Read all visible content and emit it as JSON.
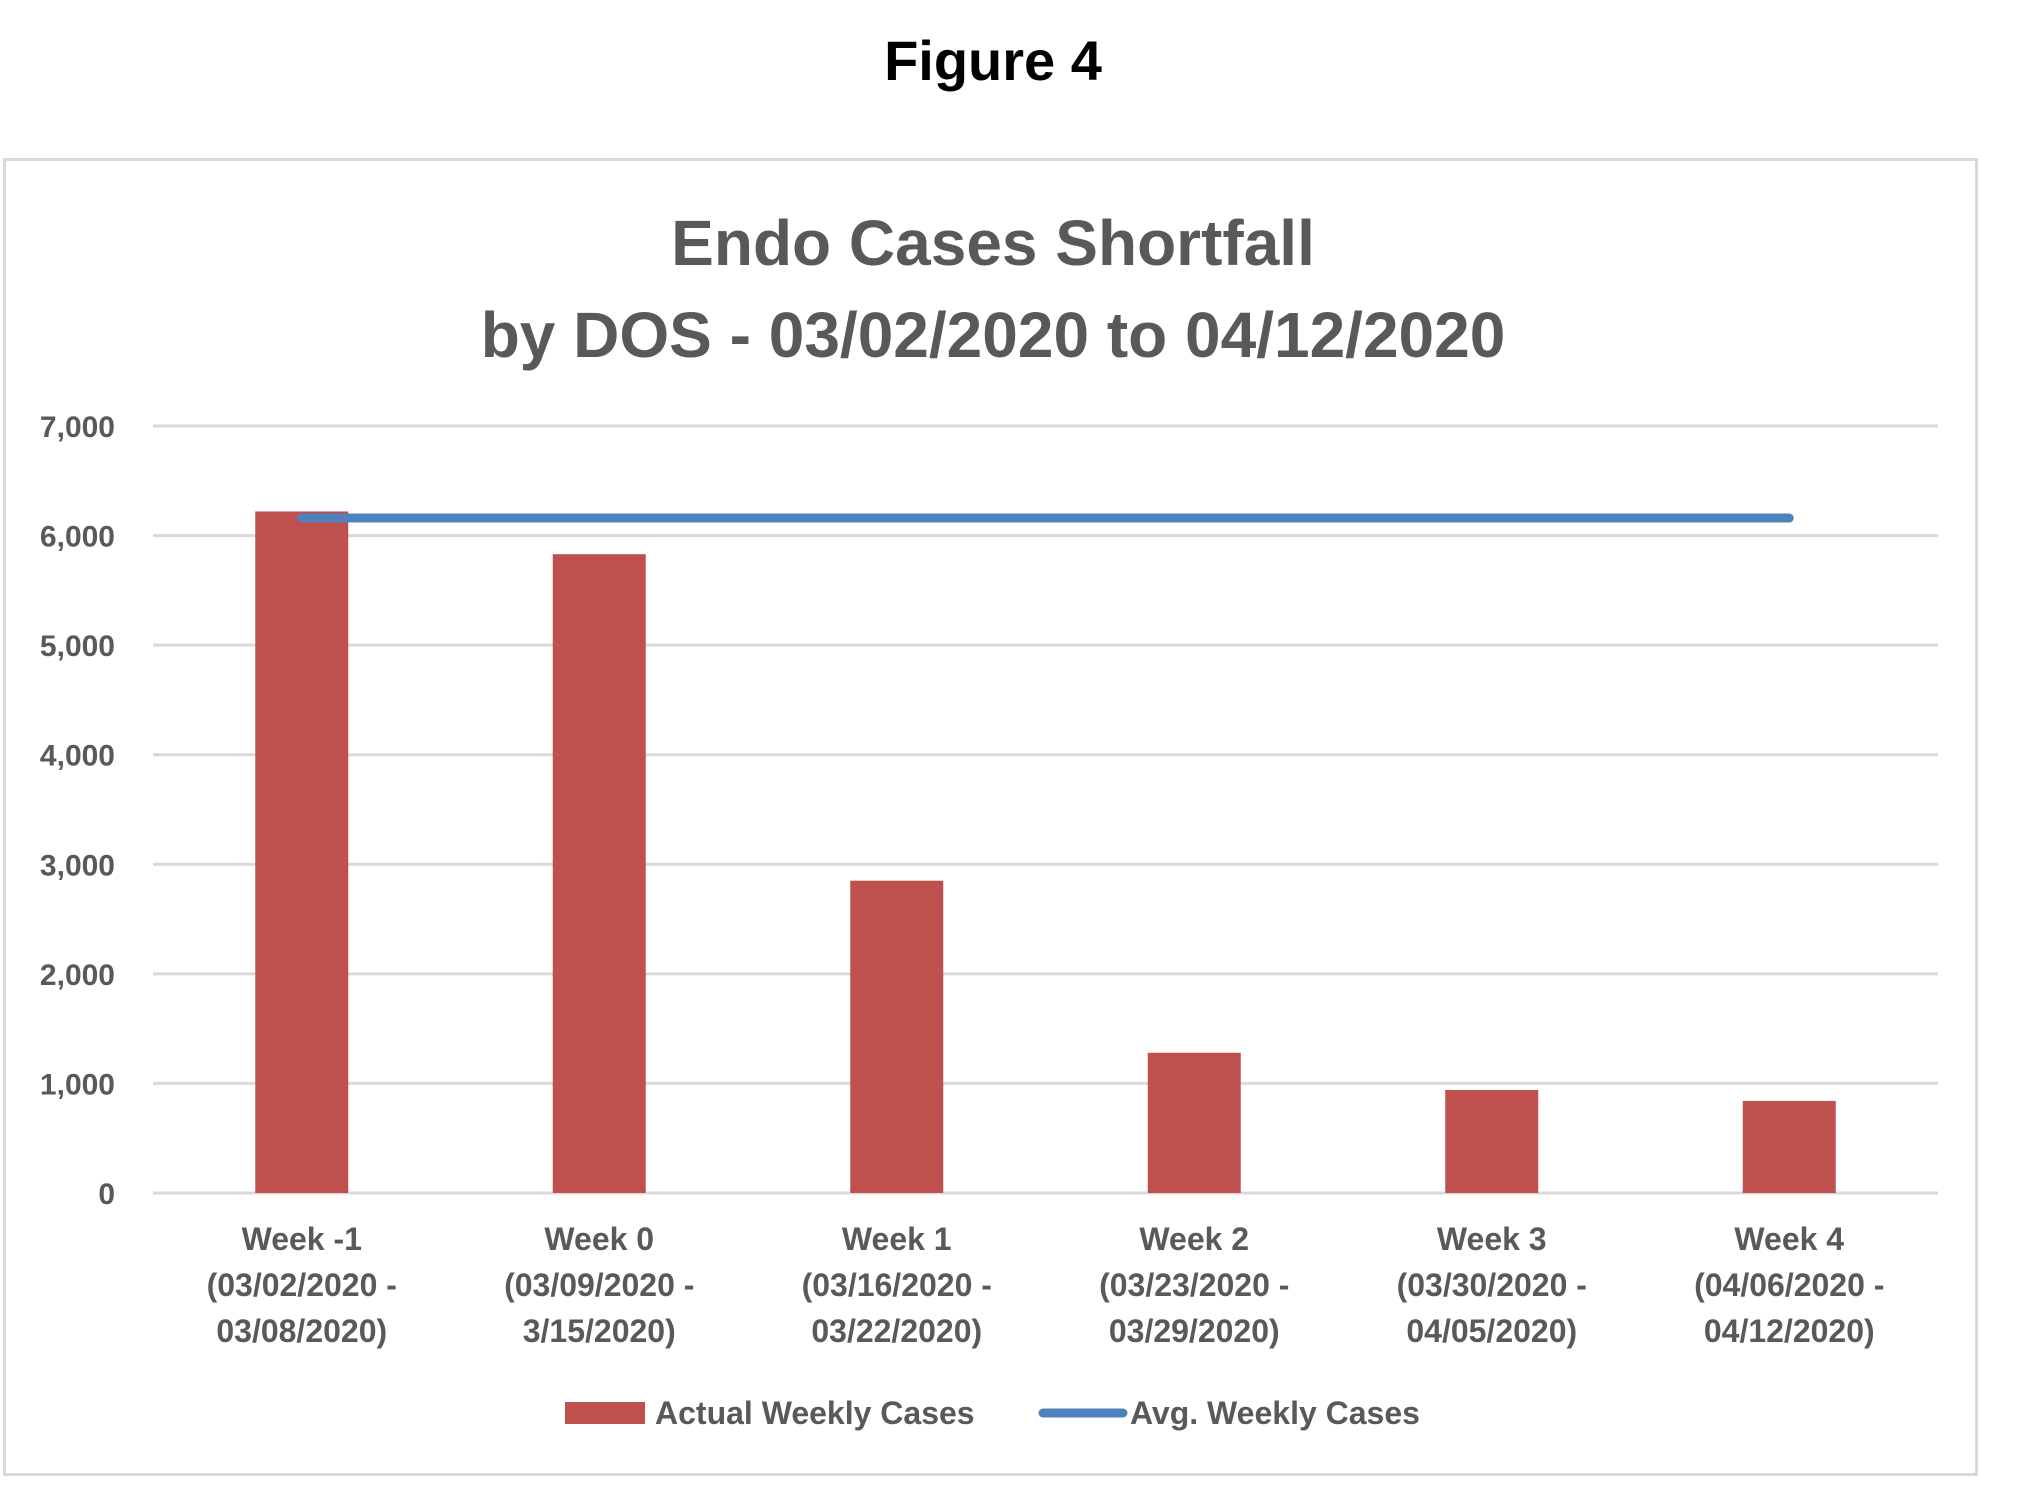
{
  "figure": {
    "title": "Figure 4"
  },
  "chart_data": {
    "type": "bar",
    "title_lines": [
      "Endo Cases Shortfall",
      "by DOS - 03/02/2020 to 04/12/2020"
    ],
    "categories": [
      [
        "Week -1",
        "(03/02/2020 -",
        "03/08/2020)"
      ],
      [
        "Week 0",
        "(03/09/2020 -",
        "3/15/2020)"
      ],
      [
        "Week 1",
        "(03/16/2020 -",
        "03/22/2020)"
      ],
      [
        "Week 2",
        "(03/23/2020 -",
        "03/29/2020)"
      ],
      [
        "Week 3",
        "(03/30/2020 -",
        "04/05/2020)"
      ],
      [
        "Week 4",
        "(04/06/2020 -",
        "04/12/2020)"
      ]
    ],
    "series": [
      {
        "name": "Actual Weekly Cases",
        "type": "bar",
        "color": "#c0504d",
        "values": [
          6220,
          5830,
          2850,
          1280,
          940,
          840
        ]
      },
      {
        "name": "Avg. Weekly Cases",
        "type": "line",
        "color": "#4f81bd",
        "values": [
          6160,
          6160,
          6160,
          6160,
          6160,
          6160
        ]
      }
    ],
    "ylim": [
      0,
      7000
    ],
    "yticks": [
      0,
      1000,
      2000,
      3000,
      4000,
      5000,
      6000,
      7000
    ],
    "ytick_labels": [
      "0",
      "1,000",
      "2,000",
      "3,000",
      "4,000",
      "5,000",
      "6,000",
      "7,000"
    ],
    "xlabel": "",
    "ylabel": "",
    "grid": true,
    "legend_position": "bottom",
    "gridline_color": "#d9d9d9"
  }
}
